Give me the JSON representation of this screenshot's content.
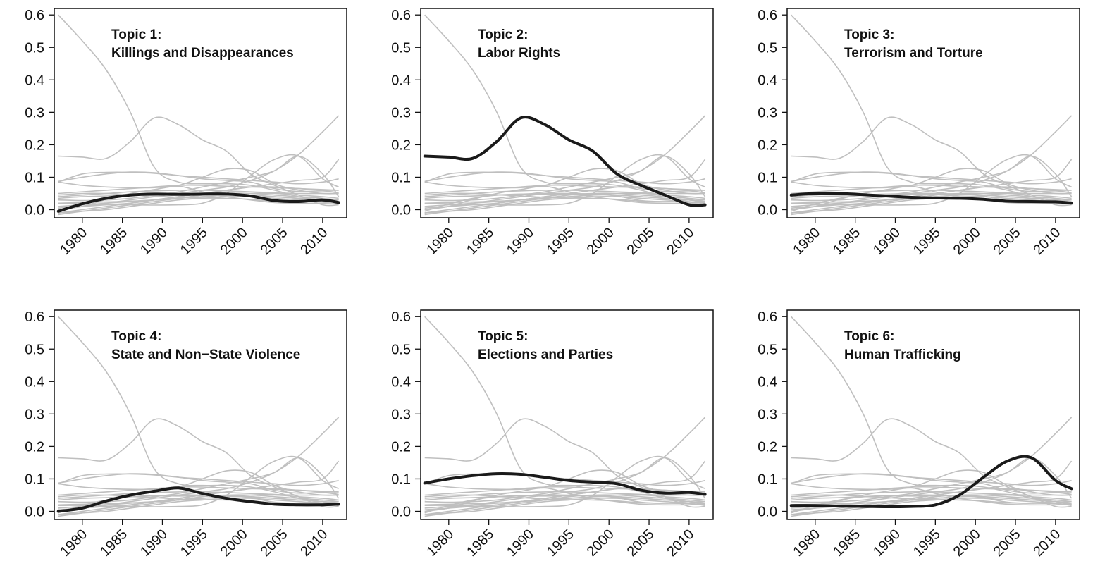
{
  "figure": {
    "x_ticks": [
      1980,
      1985,
      1990,
      1995,
      2000,
      2005,
      2010
    ],
    "y_ticks": [
      0.0,
      0.1,
      0.2,
      0.3,
      0.4,
      0.5,
      0.6
    ],
    "xlim": [
      1976.5,
      2013
    ],
    "ylim": [
      -0.025,
      0.62
    ],
    "colors": {
      "background_series": "#bfbfbf",
      "highlight_series": "#1a1a1a"
    }
  },
  "chart_data": {
    "type": "line",
    "x": [
      1977,
      1980,
      1983,
      1986,
      1989,
      1992,
      1995,
      1998,
      2001,
      2004,
      2007,
      2010,
      2012
    ],
    "xlim": [
      1976.5,
      2013
    ],
    "ylim": [
      -0.025,
      0.62
    ],
    "grid": false,
    "panels": [
      {
        "title_line1": "Topic 1:",
        "title_line2": "Killings and Disappearances",
        "highlight": 0
      },
      {
        "title_line1": "Topic 2:",
        "title_line2": "Labor Rights",
        "highlight": 1
      },
      {
        "title_line1": "Topic 3:",
        "title_line2": "Terrorism and Torture",
        "highlight": 2
      },
      {
        "title_line1": "Topic 4:",
        "title_line2": "State and Non−State Violence",
        "highlight": 3
      },
      {
        "title_line1": "Topic 5:",
        "title_line2": "Elections and Parties",
        "highlight": 4
      },
      {
        "title_line1": "Topic 6:",
        "title_line2": "Human Trafficking",
        "highlight": 5
      }
    ],
    "series": [
      {
        "values": [
          -0.005,
          0.018,
          0.035,
          0.045,
          0.048,
          0.047,
          0.048,
          0.048,
          0.042,
          0.028,
          0.025,
          0.03,
          0.022
        ]
      },
      {
        "values": [
          0.165,
          0.162,
          0.158,
          0.21,
          0.283,
          0.262,
          0.215,
          0.18,
          0.11,
          0.075,
          0.045,
          0.015,
          0.015
        ]
      },
      {
        "values": [
          0.045,
          0.05,
          0.05,
          0.046,
          0.042,
          0.038,
          0.036,
          0.035,
          0.032,
          0.026,
          0.025,
          0.024,
          0.02
        ]
      },
      {
        "values": [
          0.0,
          0.01,
          0.032,
          0.05,
          0.062,
          0.072,
          0.055,
          0.04,
          0.03,
          0.022,
          0.02,
          0.02,
          0.022
        ]
      },
      {
        "values": [
          0.087,
          0.1,
          0.11,
          0.116,
          0.114,
          0.105,
          0.095,
          0.09,
          0.085,
          0.065,
          0.056,
          0.058,
          0.052
        ]
      },
      {
        "values": [
          0.018,
          0.018,
          0.016,
          0.015,
          0.014,
          0.015,
          0.02,
          0.05,
          0.105,
          0.155,
          0.165,
          0.095,
          0.07
        ]
      },
      {
        "values": [
          0.6,
          0.52,
          0.43,
          0.3,
          0.13,
          0.085,
          0.08,
          0.08,
          0.075,
          0.06,
          0.04,
          0.03,
          0.03
        ]
      },
      {
        "values": [
          0.085,
          0.075,
          0.07,
          0.068,
          0.068,
          0.075,
          0.1,
          0.125,
          0.12,
          0.08,
          0.06,
          0.05,
          0.05
        ]
      },
      {
        "values": [
          0.085,
          0.11,
          0.115,
          0.115,
          0.112,
          0.105,
          0.1,
          0.095,
          0.09,
          0.085,
          0.08,
          0.085,
          0.095
        ]
      },
      {
        "values": [
          0.05,
          0.055,
          0.06,
          0.065,
          0.07,
          0.075,
          0.075,
          0.072,
          0.07,
          0.068,
          0.065,
          0.062,
          0.06
        ]
      },
      {
        "values": [
          0.03,
          0.028,
          0.03,
          0.035,
          0.045,
          0.055,
          0.07,
          0.085,
          0.1,
          0.12,
          0.165,
          0.11,
          0.04
        ]
      },
      {
        "values": [
          0.0,
          0.01,
          0.02,
          0.03,
          0.04,
          0.05,
          0.06,
          0.07,
          0.09,
          0.12,
          0.17,
          0.24,
          0.29
        ]
      },
      {
        "values": [
          -0.01,
          0.0,
          0.01,
          0.02,
          0.03,
          0.04,
          0.05,
          0.06,
          0.07,
          0.08,
          0.09,
          0.1,
          0.155
        ]
      },
      {
        "values": [
          0.04,
          0.045,
          0.05,
          0.055,
          0.058,
          0.06,
          0.06,
          0.058,
          0.055,
          0.052,
          0.05,
          0.05,
          0.05
        ]
      },
      {
        "values": [
          0.02,
          0.022,
          0.024,
          0.026,
          0.03,
          0.035,
          0.04,
          0.045,
          0.05,
          0.05,
          0.045,
          0.04,
          0.035
        ]
      },
      {
        "values": [
          0.01,
          0.015,
          0.02,
          0.025,
          0.03,
          0.035,
          0.04,
          0.045,
          0.045,
          0.04,
          0.035,
          0.03,
          0.025
        ]
      },
      {
        "values": [
          -0.015,
          -0.005,
          0.005,
          0.015,
          0.025,
          0.035,
          0.045,
          0.05,
          0.05,
          0.045,
          0.04,
          0.035,
          0.03
        ]
      },
      {
        "values": [
          0.035,
          0.04,
          0.042,
          0.045,
          0.048,
          0.05,
          0.05,
          0.048,
          0.045,
          0.04,
          0.035,
          0.03,
          0.02
        ]
      },
      {
        "values": [
          0.005,
          0.01,
          0.015,
          0.02,
          0.03,
          0.04,
          0.05,
          0.06,
          0.07,
          0.07,
          0.065,
          0.06,
          0.06
        ]
      },
      {
        "values": [
          -0.01,
          -0.005,
          0.0,
          0.01,
          0.02,
          0.03,
          0.035,
          0.04,
          0.04,
          0.035,
          0.03,
          0.025,
          0.018
        ]
      }
    ]
  }
}
